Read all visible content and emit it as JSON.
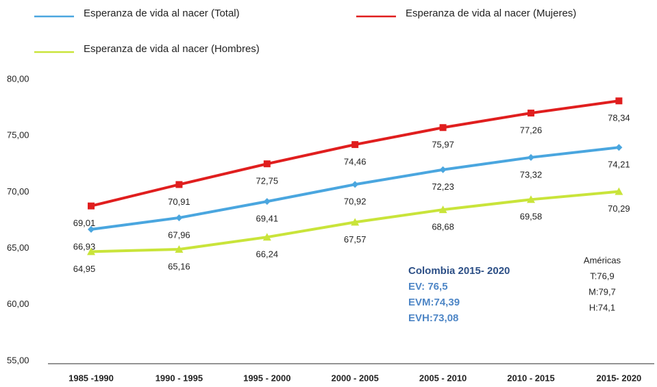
{
  "chart_data": {
    "type": "line",
    "categories": [
      "1985 -1990",
      "1990 - 1995",
      "1995 - 2000",
      "2000 - 2005",
      "2005 - 2010",
      "2010 - 2015",
      "2015- 2020"
    ],
    "series": [
      {
        "name": "Esperanza de vida  al nacer (Total)",
        "color": "#4aa6df",
        "marker": "diamond",
        "values": [
          66.93,
          67.96,
          69.41,
          70.92,
          72.23,
          73.32,
          74.21
        ],
        "value_labels": [
          "66,93",
          "67,96",
          "69,41",
          "70,92",
          "72,23",
          "73,32",
          "74,21"
        ]
      },
      {
        "name": "Esperanza de vida  al nacer (Mujeres)",
        "color": "#e01e1e",
        "marker": "square",
        "values": [
          69.01,
          70.91,
          72.75,
          74.46,
          75.97,
          77.26,
          78.34
        ],
        "value_labels": [
          "69,01",
          "70,91",
          "72,75",
          "74,46",
          "75,97",
          "77,26",
          "78,34"
        ]
      },
      {
        "name": "Esperanza de vida  al nacer (Hombres)",
        "color": "#c9e43a",
        "marker": "triangle",
        "values": [
          64.95,
          65.16,
          66.24,
          67.57,
          68.68,
          69.58,
          70.29
        ],
        "value_labels": [
          "64,95",
          "65,16",
          "66,24",
          "67,57",
          "68,68",
          "69,58",
          "70,29"
        ]
      }
    ],
    "ylim": [
      55,
      80
    ],
    "yticks": [
      {
        "value": 55,
        "label": "55,00"
      },
      {
        "value": 60,
        "label": "60,00"
      },
      {
        "value": 65,
        "label": "65,00"
      },
      {
        "value": 70,
        "label": "70,00"
      },
      {
        "value": 75,
        "label": "75,00"
      },
      {
        "value": 80,
        "label": "80,00"
      }
    ],
    "grid": false,
    "annotations": [
      {
        "lines": [
          "Colombia  2015- 2020",
          "EV: 76,5",
          "EVM:74,39",
          "EVH:73,08"
        ]
      },
      {
        "lines": [
          "Américas",
          "T:76,9",
          "M:79,7",
          "H:74,1"
        ]
      }
    ]
  }
}
